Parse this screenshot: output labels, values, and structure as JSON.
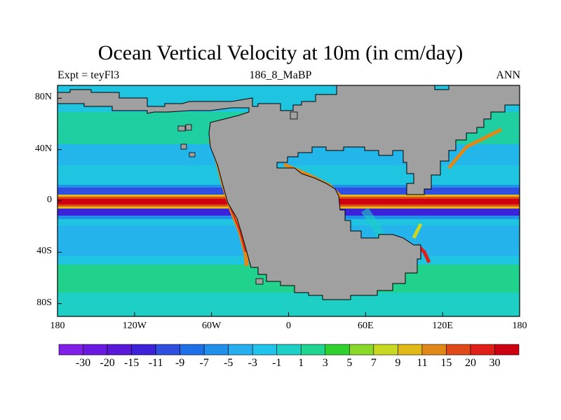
{
  "title": "Ocean Vertical Velocity at 10m (in cm/day)",
  "left_string": "Expt = teyFl3",
  "center_string": "186_8_MaBP",
  "right_string": "ANN",
  "colors": {
    "land": "#a0a0a0",
    "coastline": "#000000",
    "background_ocean": "#1fc4e0"
  },
  "chart_data": {
    "type": "heatmap",
    "variable": "Ocean Vertical Velocity at 10m",
    "units": "cm/day",
    "x_axis": {
      "range": [
        -180,
        180
      ],
      "ticks": [
        -180,
        -120,
        -60,
        0,
        60,
        120,
        180
      ],
      "tick_labels": [
        "180",
        "120W",
        "60W",
        "0",
        "60E",
        "120E",
        "180"
      ]
    },
    "y_axis": {
      "range": [
        -90,
        90
      ],
      "ticks": [
        80,
        40,
        0,
        -40,
        -80
      ],
      "tick_labels": [
        "80N",
        "40N",
        "0",
        "40S",
        "80S"
      ]
    },
    "colorbar": {
      "labels": [
        "-30",
        "-20",
        "-15",
        "-11",
        "-9",
        "-7",
        "-5",
        "-3",
        "-1",
        "1",
        "3",
        "5",
        "7",
        "9",
        "11",
        "15",
        "20",
        "30"
      ],
      "colors": [
        "#7f1fe8",
        "#6a1ae0",
        "#5a18d8",
        "#3c22d8",
        "#2f4fe0",
        "#1f6fe8",
        "#2090ea",
        "#26aef0",
        "#20c4ea",
        "#1dcfc5",
        "#20d590",
        "#30d030",
        "#8ad82a",
        "#c8d820",
        "#e0b818",
        "#e08818",
        "#e04a18",
        "#e02018",
        "#cc0010"
      ]
    }
  }
}
